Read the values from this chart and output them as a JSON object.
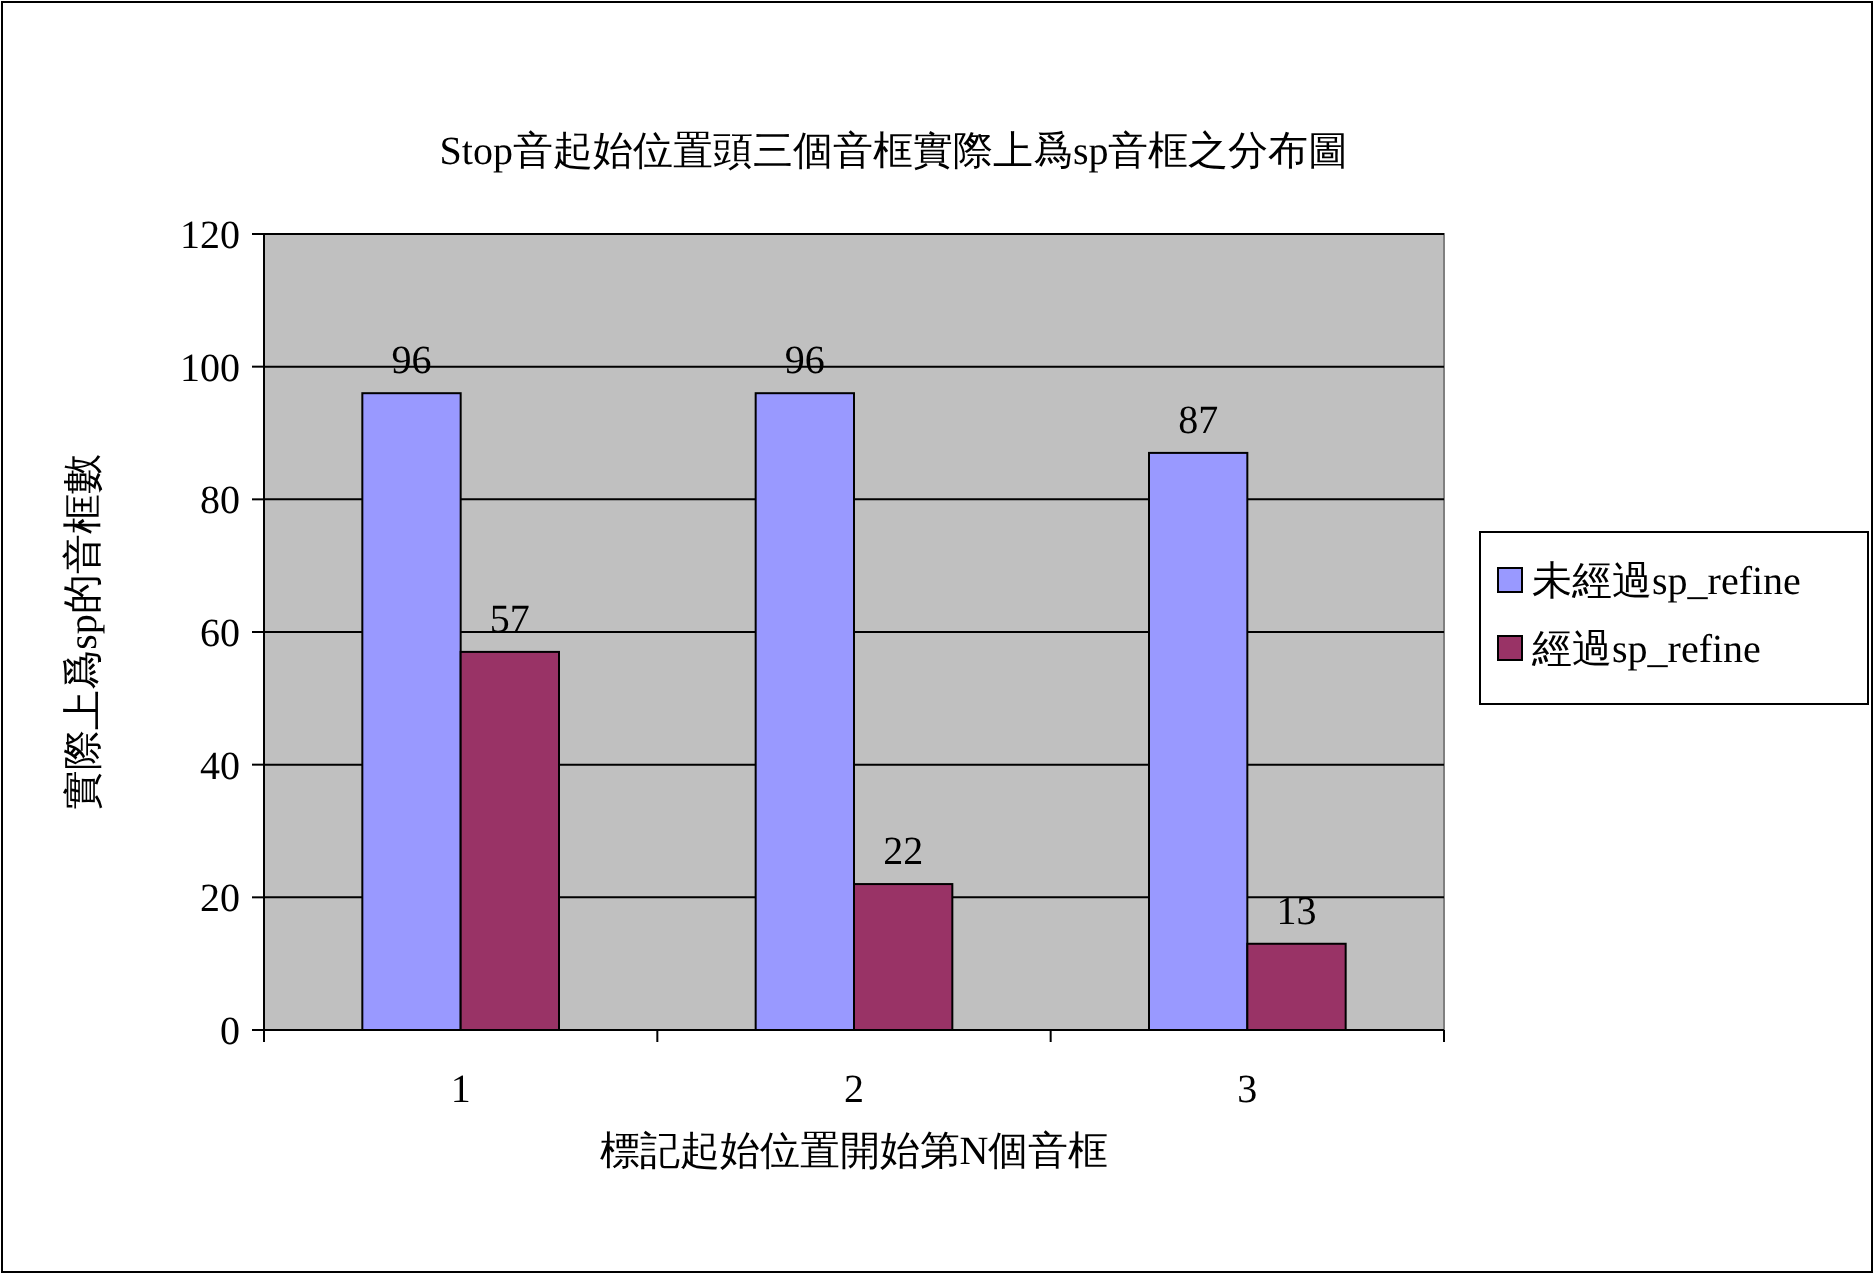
{
  "chart_data": {
    "type": "bar",
    "title": "Stop音起始位置頭三個音框實際上爲sp音框之分布圖",
    "xlabel": "標記起始位置開始第N個音框",
    "ylabel": "實際上爲sp的音框數",
    "categories": [
      "1",
      "2",
      "3"
    ],
    "series": [
      {
        "name": "未經過sp_refine",
        "color": "#9999ff",
        "values": [
          96,
          96,
          87
        ]
      },
      {
        "name": "經過sp_refine",
        "color": "#993366",
        "values": [
          57,
          22,
          13
        ]
      }
    ],
    "ylim": [
      0,
      120
    ],
    "yticks": [
      0,
      20,
      40,
      60,
      80,
      100,
      120
    ],
    "grid": "y",
    "legend": "right",
    "data_labels": true
  }
}
